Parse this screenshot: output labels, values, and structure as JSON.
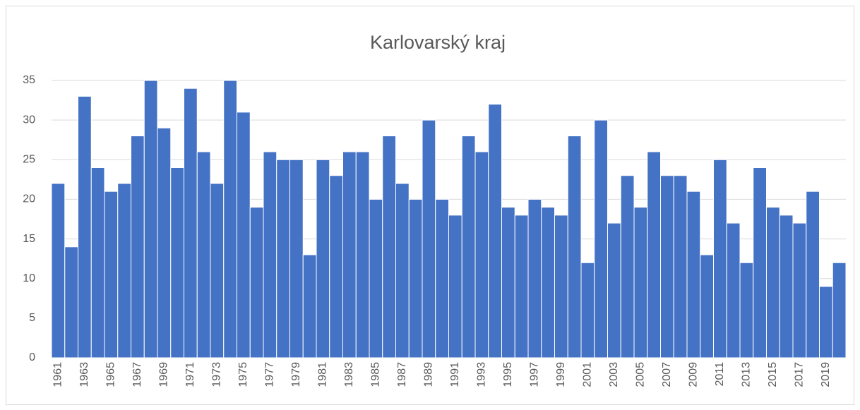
{
  "chart_data": {
    "type": "bar",
    "title": "Karlovarský kraj",
    "categories": [
      "1961",
      null,
      "1963",
      null,
      "1965",
      null,
      "1967",
      null,
      "1969",
      null,
      "1971",
      null,
      "1973",
      null,
      "1975",
      null,
      "1977",
      null,
      "1979",
      null,
      "1981",
      null,
      "1983",
      null,
      "1985",
      null,
      "1987",
      null,
      "1989",
      null,
      "1991",
      null,
      "1993",
      null,
      "1995",
      null,
      "1997",
      null,
      "1999",
      null,
      "2001",
      null,
      "2003",
      null,
      "2005",
      null,
      "2007",
      null,
      "2009",
      null,
      "2011",
      null,
      "2013",
      null,
      "2015",
      null,
      "2017",
      null,
      "2019",
      null
    ],
    "values": [
      22,
      14,
      33,
      24,
      21,
      22,
      28,
      35,
      29,
      24,
      34,
      26,
      22,
      35,
      31,
      19,
      26,
      25,
      25,
      13,
      25,
      23,
      26,
      26,
      20,
      28,
      22,
      20,
      30,
      20,
      18,
      28,
      26,
      32,
      19,
      18,
      20,
      19,
      18,
      28,
      12,
      30,
      17,
      23,
      19,
      26,
      23,
      23,
      21,
      13,
      25,
      17,
      12,
      24,
      19,
      18,
      17,
      21,
      9,
      12
    ],
    "color": "#4472c4",
    "ylim": [
      0,
      35
    ],
    "yticks": [
      0,
      5,
      10,
      15,
      20,
      25,
      30,
      35
    ],
    "grid": true
  }
}
